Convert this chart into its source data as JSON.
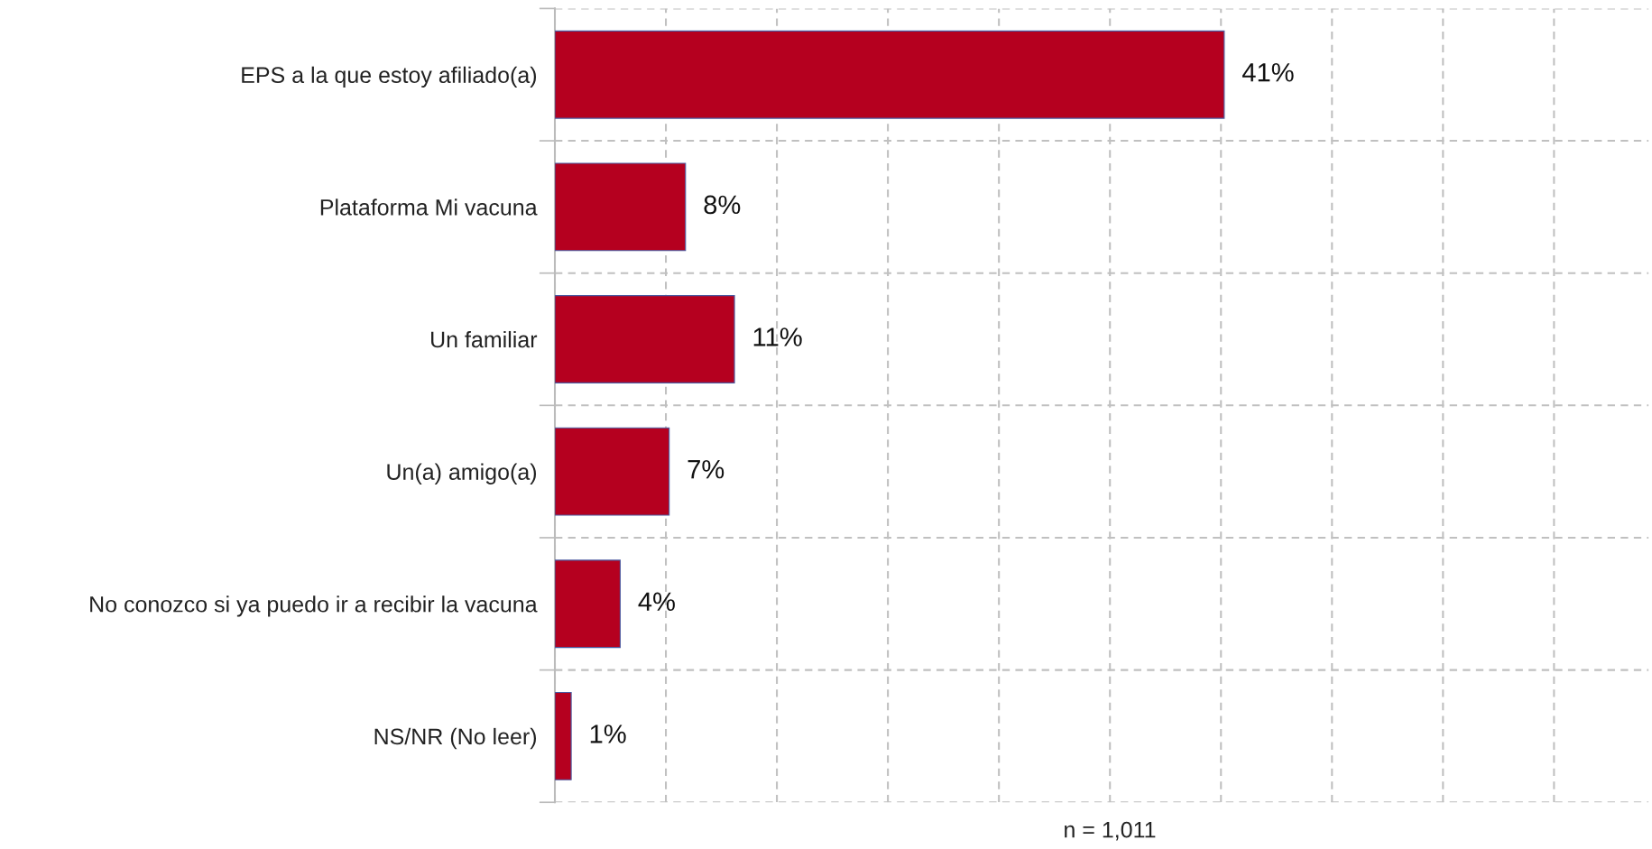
{
  "chart_data": {
    "type": "bar",
    "orientation": "horizontal",
    "categories": [
      "EPS a la que estoy afiliado(a)",
      "Plataforma Mi vacuna",
      "Un familiar",
      "Un(a) amigo(a)",
      "No conozco si ya puedo ir a recibir la vacuna",
      "NS/NR (No leer)"
    ],
    "values": [
      41,
      8,
      11,
      7,
      4,
      1
    ],
    "value_labels": [
      "41%",
      "8%",
      "11%",
      "7%",
      "4%",
      "1%"
    ],
    "color": "#b5001f",
    "xlim": [
      0,
      67
    ],
    "xticks": [
      {
        "value": 0,
        "label": null
      },
      {
        "value": 6.8,
        "label": null
      },
      {
        "value": 13.6,
        "label": null
      },
      {
        "value": 20.4,
        "label": null
      },
      {
        "value": 27.2,
        "label": null
      },
      {
        "value": 34,
        "label": null
      },
      {
        "value": 40.8,
        "label": null
      },
      {
        "value": 47.6,
        "label": null
      },
      {
        "value": 54.4,
        "label": null
      },
      {
        "value": 61.2,
        "label": null
      }
    ],
    "grid": true,
    "tick_labels": "y",
    "annotations": [
      "n = 1,011"
    ]
  }
}
